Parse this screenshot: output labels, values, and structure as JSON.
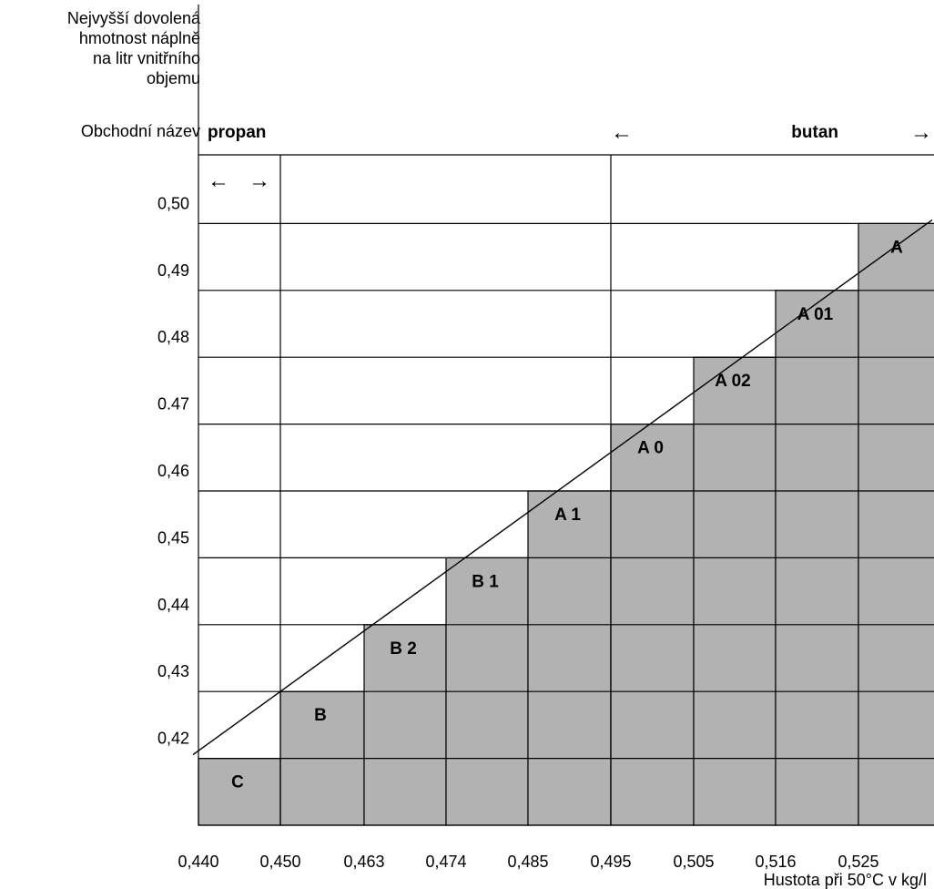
{
  "chart_data": {
    "type": "bar",
    "y_title_lines": [
      "Nejvyšší dovolená",
      "hmotnost náplně",
      "na litr vnitřního",
      "objemu"
    ],
    "trade_name_label": "Obchodní název",
    "propan_label": "propan",
    "butan_label": "butan",
    "propan_arrows": [
      "←",
      "→"
    ],
    "butan_arrow_left": "←",
    "butan_arrow_right": "→",
    "xlabel": "Hustota při 50°C v kg/l",
    "x_ticks": [
      "0,440",
      "0,450",
      "0,463",
      "0,474",
      "0,485",
      "0,495",
      "0,505",
      "0,516",
      "0,525"
    ],
    "y_ticks": [
      "0,42",
      "0,43",
      "0,44",
      "0,45",
      "0,46",
      "0.47",
      "0,48",
      "0,49",
      "0,50"
    ],
    "y_values": [
      0.42,
      0.43,
      0.44,
      0.45,
      0.46,
      0.47,
      0.48,
      0.49,
      0.5
    ],
    "categories": [
      "C",
      "B",
      "B 2",
      "B 1",
      "A 1",
      "A 0",
      "A 02",
      "A 01",
      "A"
    ],
    "values": [
      0.42,
      0.43,
      0.44,
      0.45,
      0.46,
      0.47,
      0.48,
      0.49,
      0.5
    ],
    "ylim": [
      0.41,
      0.51
    ],
    "bar_color": "#b2b2b2"
  }
}
